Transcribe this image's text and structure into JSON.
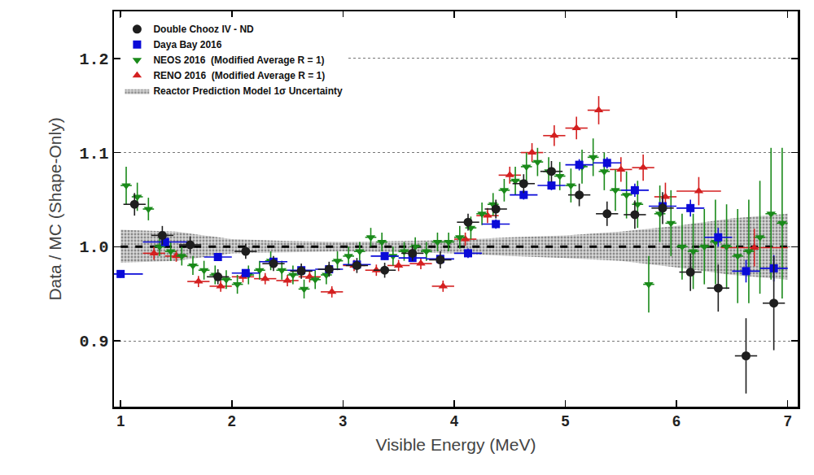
{
  "chart_data": {
    "type": "scatter",
    "x_label": "Visible Energy (MeV)",
    "y_label": "Data / MC (Shape-Only)",
    "xlim": [
      0.94,
      7.09
    ],
    "ylim": [
      0.83,
      1.25
    ],
    "xticks": [
      1,
      2,
      3,
      4,
      5,
      6,
      7
    ],
    "yticks": [
      {
        "value": 0.9,
        "label": "0.9"
      },
      {
        "value": 1.0,
        "label": "1.0"
      },
      {
        "value": 1.1,
        "label": "1.1"
      },
      {
        "value": 1.2,
        "label": "1.2"
      }
    ],
    "grid": true,
    "legend": "upper left",
    "band": {
      "name": "Reactor Prediction Model 1σ Uncertainty",
      "color": "#b0b0b0",
      "x": [
        1,
        1.5,
        2,
        2.5,
        3,
        3.5,
        4,
        4.5,
        5,
        5.5,
        6,
        6.5,
        7
      ],
      "lower": [
        0.983,
        0.985,
        0.993,
        0.994,
        0.995,
        0.994,
        0.993,
        0.99,
        0.988,
        0.985,
        0.978,
        0.97,
        0.965
      ],
      "upper": [
        1.018,
        1.016,
        1.008,
        1.006,
        1.005,
        1.006,
        1.007,
        1.01,
        1.012,
        1.016,
        1.022,
        1.03,
        1.035
      ],
      "center": 1.0
    },
    "series": [
      {
        "name": "RENO 2016  (Modified Average R = 1)",
        "color": "#d42020",
        "marker": "triangle-up",
        "x": [
          1.3,
          1.5,
          1.7,
          1.9,
          2.1,
          2.3,
          2.5,
          2.7,
          2.9,
          3.1,
          3.3,
          3.5,
          3.7,
          3.9,
          4.1,
          4.3,
          4.5,
          4.7,
          4.9,
          5.1,
          5.3,
          5.5,
          5.7,
          5.9,
          6.2,
          6.7
        ],
        "values": [
          0.993,
          0.99,
          0.963,
          0.958,
          0.968,
          0.966,
          0.964,
          0.968,
          0.952,
          0.98,
          0.975,
          0.98,
          0.982,
          0.958,
          1.008,
          1.033,
          1.076,
          1.1,
          1.118,
          1.126,
          1.145,
          1.082,
          1.084,
          1.053,
          1.059,
          0.999
        ],
        "y_error": [
          0.007,
          0.006,
          0.006,
          0.006,
          0.006,
          0.006,
          0.006,
          0.006,
          0.006,
          0.006,
          0.006,
          0.006,
          0.006,
          0.006,
          0.007,
          0.008,
          0.009,
          0.01,
          0.011,
          0.012,
          0.015,
          0.013,
          0.014,
          0.015,
          0.015,
          0.02
        ],
        "x_error": [
          0.1,
          0.1,
          0.1,
          0.1,
          0.1,
          0.1,
          0.1,
          0.1,
          0.1,
          0.1,
          0.1,
          0.1,
          0.1,
          0.1,
          0.1,
          0.1,
          0.1,
          0.1,
          0.1,
          0.1,
          0.1,
          0.1,
          0.1,
          0.1,
          0.2,
          0.3
        ]
      },
      {
        "name": "NEOS 2016  (Modified Average R = 1)",
        "color": "#1a8a1a",
        "marker": "triangle-down",
        "x": [
          1.05,
          1.15,
          1.25,
          1.35,
          1.45,
          1.55,
          1.65,
          1.75,
          1.85,
          1.95,
          2.05,
          2.15,
          2.25,
          2.35,
          2.45,
          2.55,
          2.65,
          2.75,
          2.85,
          2.95,
          3.05,
          3.15,
          3.25,
          3.35,
          3.45,
          3.55,
          3.65,
          3.75,
          3.85,
          3.95,
          4.05,
          4.15,
          4.25,
          4.35,
          4.45,
          4.55,
          4.65,
          4.75,
          4.85,
          4.95,
          5.05,
          5.15,
          5.25,
          5.35,
          5.45,
          5.55,
          5.65,
          5.75,
          5.85,
          5.95,
          6.05,
          6.15,
          6.25,
          6.35,
          6.45,
          6.55,
          6.65,
          6.75,
          6.85,
          6.95
        ],
        "values": [
          1.065,
          1.053,
          1.04,
          1.0,
          0.995,
          0.99,
          0.98,
          0.975,
          0.97,
          0.965,
          0.96,
          0.97,
          0.975,
          0.985,
          0.975,
          0.97,
          0.955,
          0.965,
          0.97,
          0.985,
          0.99,
          0.995,
          1.01,
          1.005,
          0.99,
          0.995,
          1.0,
          0.995,
          1.005,
          1.005,
          1.01,
          1.02,
          1.035,
          1.045,
          1.06,
          1.07,
          1.085,
          1.09,
          1.08,
          1.075,
          1.065,
          1.085,
          1.095,
          1.08,
          1.06,
          1.055,
          1.045,
          0.96,
          1.035,
          1.025,
          1.0,
          0.995,
          1.0,
          1.005,
          1.0,
          0.99,
          0.995,
          1.01,
          1.035,
          1.025
        ],
        "y_error": [
          0.02,
          0.015,
          0.012,
          0.01,
          0.01,
          0.01,
          0.01,
          0.01,
          0.01,
          0.01,
          0.01,
          0.01,
          0.01,
          0.01,
          0.01,
          0.01,
          0.01,
          0.01,
          0.01,
          0.01,
          0.01,
          0.01,
          0.01,
          0.01,
          0.01,
          0.01,
          0.01,
          0.01,
          0.01,
          0.01,
          0.012,
          0.012,
          0.012,
          0.012,
          0.012,
          0.015,
          0.015,
          0.015,
          0.015,
          0.015,
          0.018,
          0.018,
          0.02,
          0.02,
          0.022,
          0.025,
          0.025,
          0.03,
          0.03,
          0.035,
          0.035,
          0.04,
          0.04,
          0.045,
          0.045,
          0.05,
          0.055,
          0.06,
          0.07,
          0.08
        ],
        "x_error": [
          0.05,
          0.05,
          0.05,
          0.05,
          0.05,
          0.05,
          0.05,
          0.05,
          0.05,
          0.05,
          0.05,
          0.05,
          0.05,
          0.05,
          0.05,
          0.05,
          0.05,
          0.05,
          0.05,
          0.05,
          0.05,
          0.05,
          0.05,
          0.05,
          0.05,
          0.05,
          0.05,
          0.05,
          0.05,
          0.05,
          0.05,
          0.05,
          0.05,
          0.05,
          0.05,
          0.05,
          0.05,
          0.05,
          0.05,
          0.05,
          0.05,
          0.05,
          0.05,
          0.05,
          0.05,
          0.05,
          0.05,
          0.05,
          0.05,
          0.05,
          0.05,
          0.05,
          0.05,
          0.05,
          0.05,
          0.05,
          0.05,
          0.05,
          0.05,
          0.05
        ]
      },
      {
        "name": "Daya Bay 2016",
        "color": "#0a0ad8",
        "marker": "square",
        "x": [
          1.0,
          1.4,
          1.875,
          2.125,
          2.375,
          2.625,
          2.875,
          3.125,
          3.375,
          3.625,
          3.875,
          4.125,
          4.375,
          4.625,
          4.875,
          5.125,
          5.375,
          5.625,
          5.875,
          6.125,
          6.375,
          6.625,
          6.875
        ],
        "values": [
          0.971,
          1.005,
          0.989,
          0.972,
          0.984,
          0.975,
          0.976,
          0.981,
          0.99,
          0.988,
          0.987,
          0.993,
          1.024,
          1.055,
          1.065,
          1.087,
          1.089,
          1.06,
          1.043,
          1.041,
          1.01,
          0.974,
          0.977
        ],
        "y_error": [
          0.004,
          0.005,
          0.004,
          0.004,
          0.004,
          0.004,
          0.004,
          0.004,
          0.004,
          0.004,
          0.004,
          0.005,
          0.005,
          0.005,
          0.005,
          0.006,
          0.006,
          0.007,
          0.008,
          0.009,
          0.01,
          0.012,
          0.014
        ],
        "x_error": [
          0.2,
          0.2,
          0.125,
          0.125,
          0.125,
          0.125,
          0.125,
          0.125,
          0.125,
          0.125,
          0.125,
          0.125,
          0.125,
          0.125,
          0.125,
          0.125,
          0.125,
          0.125,
          0.125,
          0.125,
          0.125,
          0.125,
          0.125
        ]
      },
      {
        "name": "Double Chooz IV - ND",
        "color": "#1e1e1e",
        "marker": "circle",
        "x": [
          1.125,
          1.375,
          1.625,
          1.875,
          2.125,
          2.375,
          2.625,
          2.875,
          3.125,
          3.375,
          3.625,
          3.875,
          4.125,
          4.375,
          4.625,
          4.875,
          5.125,
          5.375,
          5.625,
          5.875,
          6.125,
          6.375,
          6.625,
          6.875
        ],
        "values": [
          1.045,
          1.012,
          1.002,
          0.968,
          0.995,
          0.982,
          0.974,
          0.976,
          0.98,
          0.975,
          0.993,
          0.986,
          1.026,
          1.04,
          1.067,
          1.08,
          1.055,
          1.035,
          1.034,
          1.041,
          0.973,
          0.956,
          0.884,
          0.94
        ],
        "y_error": [
          0.012,
          0.01,
          0.009,
          0.008,
          0.008,
          0.008,
          0.008,
          0.008,
          0.008,
          0.008,
          0.008,
          0.009,
          0.009,
          0.01,
          0.01,
          0.011,
          0.012,
          0.013,
          0.015,
          0.017,
          0.02,
          0.025,
          0.04,
          0.05
        ],
        "x_error": [
          0.1,
          0.1,
          0.1,
          0.1,
          0.1,
          0.1,
          0.1,
          0.1,
          0.1,
          0.1,
          0.1,
          0.1,
          0.1,
          0.1,
          0.1,
          0.1,
          0.1,
          0.1,
          0.1,
          0.1,
          0.1,
          0.1,
          0.1,
          0.1
        ]
      }
    ]
  }
}
